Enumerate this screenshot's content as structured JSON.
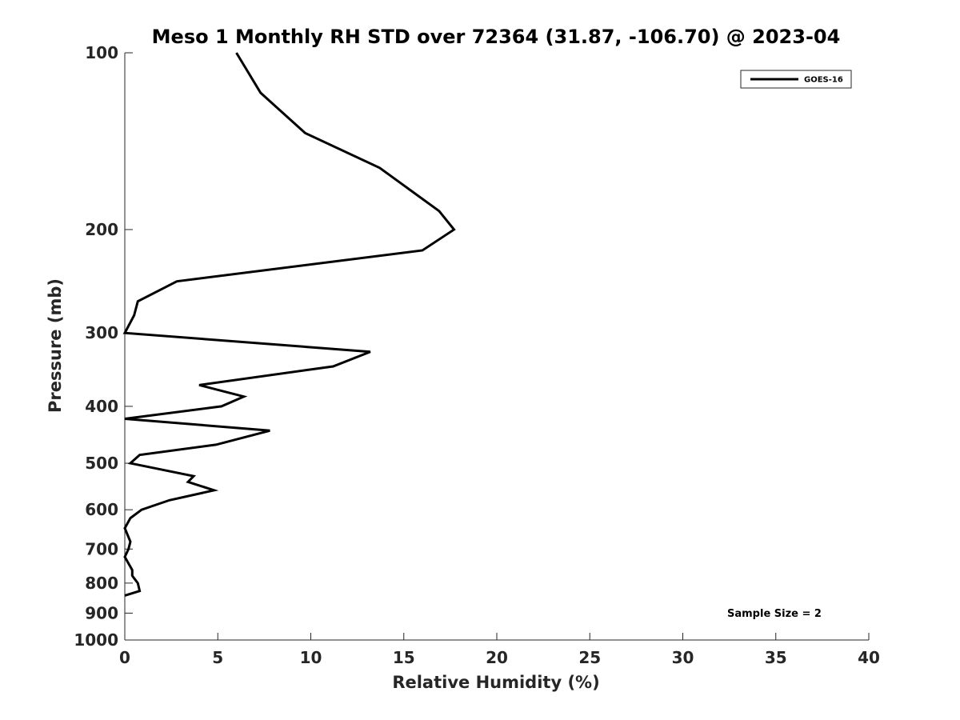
{
  "chart_data": {
    "type": "line",
    "title": "Meso 1 Monthly RH STD over 72364 (31.87, -106.70) @ 2023-04",
    "xlabel": "Relative Humidity (%)",
    "ylabel": "Pressure (mb)",
    "xlim": [
      0,
      40
    ],
    "ylim": [
      100,
      1000
    ],
    "y_scale": "log",
    "y_reversed": true,
    "x_ticks": [
      "0",
      "5",
      "10",
      "15",
      "20",
      "25",
      "30",
      "35",
      "40"
    ],
    "y_ticks": [
      "100",
      "200",
      "300",
      "400",
      "500",
      "600",
      "700",
      "800",
      "900",
      "1000"
    ],
    "grid": false,
    "legend": {
      "position": "top-right",
      "entries": [
        "GOES-16"
      ]
    },
    "annotation": "Sample Size = 2",
    "series": [
      {
        "name": "GOES-16",
        "color": "#000000",
        "x": [
          6.0,
          7.3,
          9.7,
          13.7,
          16.9,
          17.7,
          16.0,
          2.8,
          0.7,
          0.5,
          0.0,
          13.2,
          11.2,
          4.0,
          6.4,
          5.2,
          0.0,
          7.8,
          4.9,
          0.8,
          0.3,
          3.7,
          3.4,
          4.8,
          2.4,
          0.9,
          0.3,
          0.0,
          0.3,
          0.2,
          0.0,
          0.4,
          0.4,
          0.5,
          0.7,
          0.8,
          0.0
        ],
        "y": [
          100,
          117,
          137,
          157,
          186,
          200,
          217,
          245,
          265,
          280,
          300,
          323,
          342,
          368,
          385,
          400,
          420,
          440,
          465,
          484,
          500,
          526,
          538,
          556,
          578,
          600,
          620,
          645,
          680,
          700,
          722,
          760,
          777,
          785,
          800,
          825,
          840
        ]
      }
    ]
  }
}
